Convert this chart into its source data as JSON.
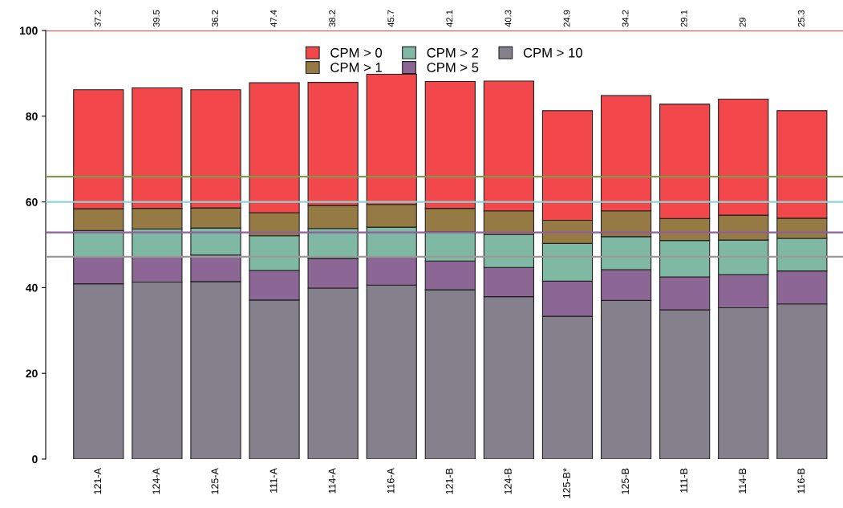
{
  "chart_data": {
    "type": "bar",
    "stacked": true,
    "categories": [
      "121-A",
      "124-A",
      "125-A",
      "111-A",
      "114-A",
      "116-A",
      "121-B",
      "124-B",
      "125-B*",
      "125-B",
      "111-B",
      "114-B",
      "116-B"
    ],
    "series": [
      {
        "name": "CPM > 10",
        "color": "#85818c",
        "values": [
          40.9,
          41.3,
          41.4,
          37.1,
          39.9,
          40.6,
          39.5,
          37.9,
          33.3,
          37.0,
          34.8,
          35.3,
          36.2
        ]
      },
      {
        "name": "CPM > 5",
        "color": "#8c6694",
        "values": [
          6.2,
          5.8,
          6.2,
          6.9,
          6.9,
          6.5,
          6.7,
          6.8,
          8.2,
          7.2,
          7.7,
          7.7,
          7.7
        ]
      },
      {
        "name": "CPM > 2",
        "color": "#7fb8a3",
        "values": [
          6.2,
          6.6,
          6.3,
          8.1,
          7.0,
          7.0,
          6.8,
          7.7,
          8.8,
          7.7,
          8.5,
          8.1,
          7.6
        ]
      },
      {
        "name": "CPM > 1",
        "color": "#957a44",
        "values": [
          5.1,
          4.8,
          4.7,
          5.4,
          5.4,
          5.3,
          5.5,
          5.5,
          5.4,
          6.0,
          5.1,
          5.8,
          4.7
        ]
      },
      {
        "name": "CPM > 0",
        "color": "#f2484b",
        "values": [
          27.8,
          28.1,
          27.6,
          30.3,
          28.7,
          30.4,
          29.6,
          30.3,
          25.6,
          26.9,
          26.7,
          27.1,
          25.1
        ]
      }
    ],
    "ylim": [
      0,
      100
    ],
    "yticks": [
      0,
      20,
      40,
      60,
      80,
      100
    ],
    "ref_lines": [
      {
        "axis": "y",
        "value": 100,
        "color": "#ff0000"
      },
      {
        "axis": "y",
        "value": 65.9,
        "color": "#7f9a4c"
      },
      {
        "axis": "y",
        "value": 60,
        "color": "#8fd3d1"
      },
      {
        "axis": "y",
        "value": 52.9,
        "color": "#8f5f9b"
      },
      {
        "axis": "y",
        "value": 47.2,
        "color": "#9a9a9a"
      }
    ],
    "annotations": [
      {
        "text": "37.2",
        "x": "121-A",
        "y": 100
      },
      {
        "text": "39.5",
        "x": "124-A",
        "y": 100
      },
      {
        "text": "36.2",
        "x": "125-A",
        "y": 100
      },
      {
        "text": "47.4",
        "x": "111-A",
        "y": 100
      },
      {
        "text": "38.2",
        "x": "114-A",
        "y": 100
      },
      {
        "text": "45.7",
        "x": "116-A",
        "y": 100
      },
      {
        "text": "42.1",
        "x": "121-B",
        "y": 100
      },
      {
        "text": "40.3",
        "x": "124-B",
        "y": 100
      },
      {
        "text": "24.9",
        "x": "125-B*",
        "y": 100
      },
      {
        "text": "34.2",
        "x": "125-B",
        "y": 100
      },
      {
        "text": "29.1",
        "x": "111-B",
        "y": 100
      },
      {
        "text": "29",
        "x": "114-B",
        "y": 100
      },
      {
        "text": "25.3",
        "x": "116-B",
        "y": 100
      }
    ],
    "legend": "top",
    "grid": false
  }
}
